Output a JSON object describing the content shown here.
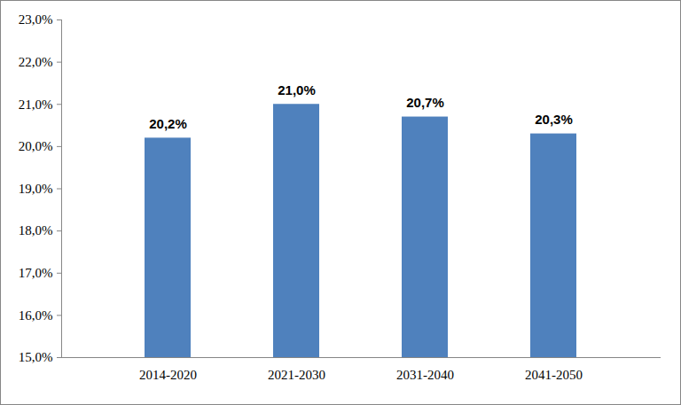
{
  "chart_data": {
    "type": "bar",
    "categories": [
      "2014-2020",
      "2021-2030",
      "2031-2040",
      "2041-2050"
    ],
    "values": [
      20.2,
      21.0,
      20.7,
      20.3
    ],
    "value_labels": [
      "20,2%",
      "21,0%",
      "20,7%",
      "20,3%"
    ],
    "color": "#4f81bd",
    "ylim": [
      15,
      23
    ],
    "yticks": [
      {
        "value": 15,
        "label": "15,0%"
      },
      {
        "value": 16,
        "label": "16,0%"
      },
      {
        "value": 17,
        "label": "17,0%"
      },
      {
        "value": 18,
        "label": "18,0%"
      },
      {
        "value": 19,
        "label": "19,0%"
      },
      {
        "value": 20,
        "label": "20,0%"
      },
      {
        "value": 21,
        "label": "21,0%"
      },
      {
        "value": 22,
        "label": "22,0%"
      },
      {
        "value": 23,
        "label": "23,0%"
      }
    ],
    "grid": false,
    "data_labels": true
  }
}
